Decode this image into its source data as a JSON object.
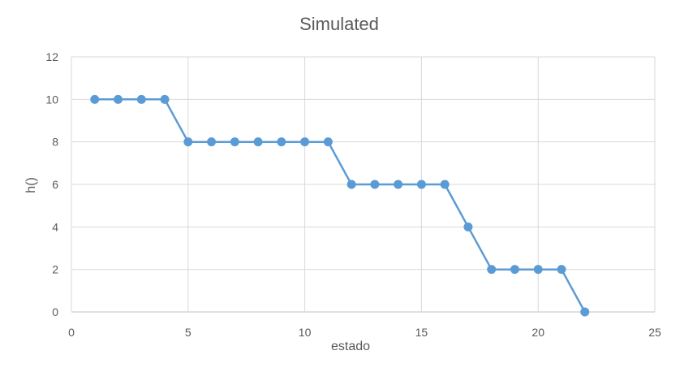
{
  "chart_data": {
    "type": "scatter",
    "title": "Simulated",
    "xlabel": "estado",
    "ylabel": "h()",
    "xlim": [
      0,
      25
    ],
    "ylim": [
      0,
      12
    ],
    "xticks": [
      0,
      5,
      10,
      15,
      20,
      25
    ],
    "yticks": [
      0,
      2,
      4,
      6,
      8,
      10,
      12
    ],
    "grid": true,
    "legend": "none",
    "series": [
      {
        "color": "#5b9bd5",
        "x": [
          1,
          2,
          3,
          4,
          5,
          6,
          7,
          8,
          9,
          10,
          11,
          12,
          13,
          14,
          15,
          16,
          17,
          18,
          19,
          20,
          21,
          22
        ],
        "y": [
          10,
          10,
          10,
          10,
          8,
          8,
          8,
          8,
          8,
          8,
          8,
          6,
          6,
          6,
          6,
          6,
          4,
          2,
          2,
          2,
          2,
          0
        ]
      }
    ]
  }
}
